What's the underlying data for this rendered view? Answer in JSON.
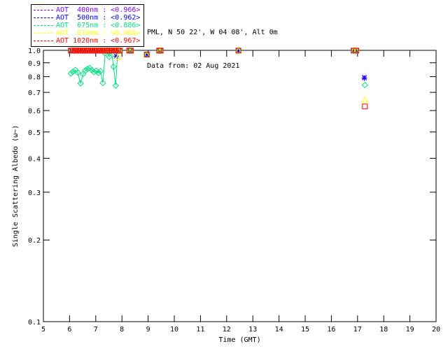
{
  "header": {
    "line1": "PML, N 50 22', W 04 08', Alt 0m",
    "line2": "Data from: 02 Aug 2021"
  },
  "legend": {
    "items": [
      {
        "label": "AOT  400nm : <0.966>",
        "color": "#7F00FF"
      },
      {
        "label": "AOT  500nm : <0.962>",
        "color": "#0000FF"
      },
      {
        "label": "AOT  675nm : <0.886>",
        "color": "#00E080"
      },
      {
        "label": "AOT  870nm : <0.966>",
        "color": "#FFFF00"
      },
      {
        "label": "AOT 1020nm : <0.967>",
        "color": "#FF0000"
      }
    ]
  },
  "chart_data": {
    "type": "scatter",
    "title": "",
    "xlabel": "Time (GMT)",
    "ylabel": "Single Scattering Albedo (ω~)",
    "xlim": [
      5,
      20
    ],
    "ylim": [
      0.1,
      1.0
    ],
    "yscale": "log",
    "grid": false,
    "xticks": [
      5,
      6,
      7,
      8,
      9,
      10,
      11,
      12,
      13,
      14,
      15,
      16,
      17,
      18,
      19,
      20
    ],
    "yticks": [
      {
        "v": 1.0,
        "label": "1.0"
      },
      {
        "v": 0.9,
        "label": "0.9"
      },
      {
        "v": 0.8,
        "label": "0.8"
      },
      {
        "v": 0.7,
        "label": "0.7"
      },
      {
        "v": 0.6,
        "label": "0.6"
      },
      {
        "v": 0.5,
        "label": "0.5"
      },
      {
        "v": 0.4,
        "label": "0.4"
      },
      {
        "v": 0.3,
        "label": "0.3"
      },
      {
        "v": 0.2,
        "label": "0.2"
      },
      {
        "v": 0.1,
        "label": "0.1"
      }
    ],
    "cluster_points": [
      [
        6.05,
        0.998
      ],
      [
        6.12,
        0.998
      ],
      [
        6.2,
        0.998
      ],
      [
        6.27,
        0.998
      ],
      [
        6.35,
        0.998
      ],
      [
        6.42,
        0.998
      ],
      [
        6.5,
        0.998
      ],
      [
        6.57,
        0.998
      ],
      [
        6.65,
        0.998
      ],
      [
        6.72,
        0.998
      ],
      [
        6.8,
        0.998
      ],
      [
        6.87,
        0.998
      ],
      [
        6.95,
        0.998
      ],
      [
        7.02,
        0.998
      ],
      [
        7.1,
        0.998
      ],
      [
        7.17,
        0.998
      ],
      [
        7.25,
        0.998
      ],
      [
        7.32,
        0.998
      ],
      [
        7.4,
        0.998
      ],
      [
        7.47,
        0.998
      ],
      [
        7.55,
        0.998
      ],
      [
        7.62,
        0.998
      ],
      [
        7.7,
        0.998
      ],
      [
        7.77,
        0.998
      ],
      [
        7.85,
        0.998
      ],
      [
        7.92,
        0.998
      ]
    ],
    "group_points": [
      [
        8.28,
        0.998
      ],
      [
        8.34,
        0.998
      ],
      [
        8.95,
        0.965
      ],
      [
        9.42,
        0.998
      ],
      [
        9.48,
        0.998
      ],
      [
        12.45,
        0.998
      ],
      [
        16.85,
        0.998
      ],
      [
        16.95,
        0.998
      ]
    ],
    "series": [
      {
        "name": "AOT 400nm",
        "mean": "<0.966>",
        "color": "#7F00FF",
        "marker": "x",
        "use_cluster": true,
        "use_groups": true,
        "segments": [
          [
            [
              17.26,
              0.797
            ]
          ]
        ]
      },
      {
        "name": "AOT 500nm",
        "mean": "<0.962>",
        "color": "#0000FF",
        "marker": "asterisk",
        "use_cluster": true,
        "use_groups": true,
        "segments": [
          [
            [
              7.78,
              0.952
            ]
          ],
          [
            [
              17.26,
              0.79
            ]
          ]
        ]
      },
      {
        "name": "AOT 675nm",
        "mean": "<0.886>",
        "color": "#00E080",
        "marker": "diamond",
        "use_cluster": false,
        "use_groups": true,
        "segments": [
          [
            [
              6.05,
              0.822
            ],
            [
              6.13,
              0.834
            ],
            [
              6.22,
              0.846
            ],
            [
              6.31,
              0.828
            ],
            [
              6.42,
              0.756
            ],
            [
              6.52,
              0.818
            ],
            [
              6.6,
              0.842
            ],
            [
              6.68,
              0.854
            ],
            [
              6.77,
              0.86
            ],
            [
              6.85,
              0.846
            ],
            [
              6.93,
              0.832
            ],
            [
              7.02,
              0.84
            ],
            [
              7.1,
              0.826
            ],
            [
              7.18,
              0.838
            ],
            [
              7.27,
              0.758
            ],
            [
              7.36,
              0.975
            ],
            [
              7.44,
              0.998
            ],
            [
              7.52,
              0.946
            ],
            [
              7.6,
              0.996
            ],
            [
              7.68,
              0.87
            ],
            [
              7.76,
              0.742
            ],
            [
              7.84,
              0.996
            ],
            [
              7.92,
              0.998
            ]
          ],
          [
            [
              17.28,
              0.745
            ]
          ]
        ]
      },
      {
        "name": "AOT 870nm",
        "mean": "<0.966>",
        "color": "#FFFF00",
        "marker": "triangle",
        "use_cluster": true,
        "use_groups": true,
        "segments": [
          [
            [
              7.86,
              0.948
            ]
          ],
          [
            [
              17.28,
              0.657
            ]
          ]
        ]
      },
      {
        "name": "AOT 1020nm",
        "mean": "<0.967>",
        "color": "#FF0000",
        "marker": "square",
        "use_cluster": true,
        "use_groups": true,
        "segments": [
          [
            [
              17.28,
              0.621
            ]
          ]
        ]
      }
    ]
  }
}
